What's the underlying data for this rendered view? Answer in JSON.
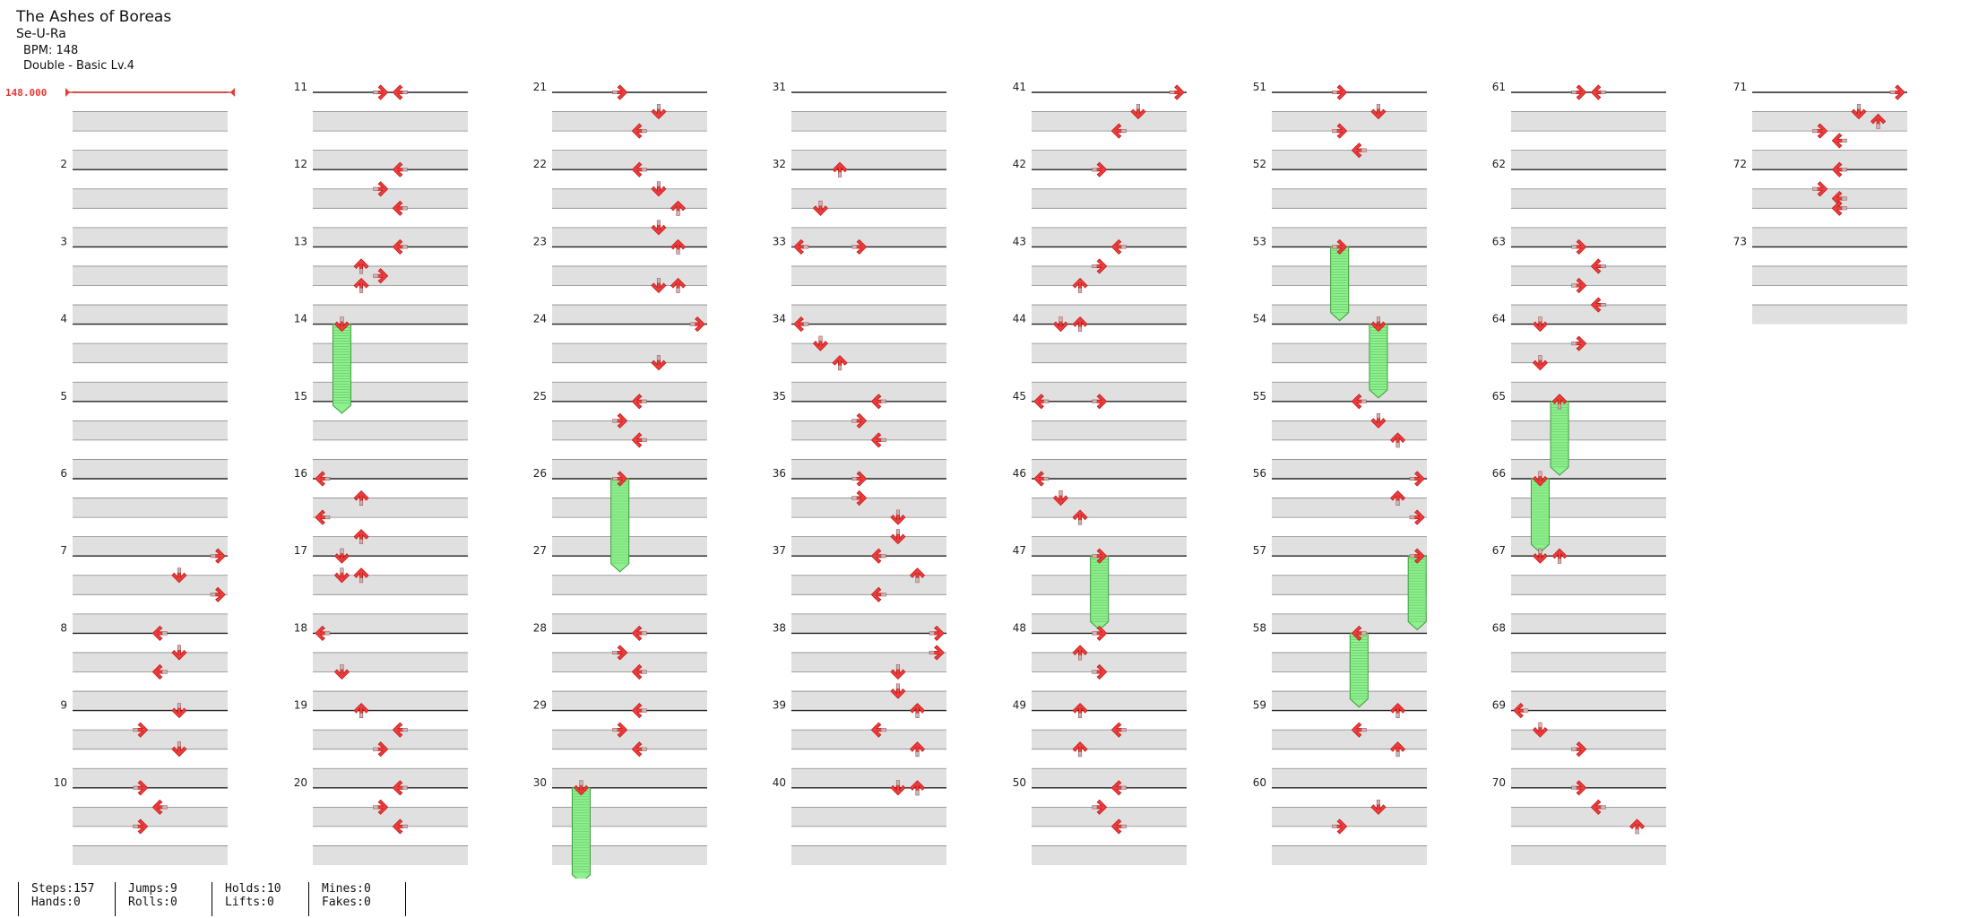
{
  "song": {
    "title": "The Ashes of Boreas",
    "artist": "Se-U-Ra",
    "bpm_label": "BPM: 148",
    "difficulty": "Double - Basic  Lv.4",
    "bpm_marker": "148.000"
  },
  "chart_data": {
    "type": "stepchart",
    "mode": "Double",
    "lanes": 8,
    "measures_total": 73,
    "arrow_color": "#f23b3b",
    "hold_color": "#8ef08e",
    "notes_by_measure": {
      "7": [
        [
          0,
          7,
          "R"
        ],
        [
          1,
          5,
          "D"
        ],
        [
          2,
          7,
          "R"
        ]
      ],
      "8": [
        [
          0,
          4,
          "L"
        ],
        [
          1,
          5,
          "D"
        ],
        [
          2,
          4,
          "L"
        ]
      ],
      "9": [
        [
          0,
          5,
          "D"
        ],
        [
          1,
          3,
          "R"
        ],
        [
          2,
          5,
          "D"
        ]
      ],
      "10": [
        [
          0,
          3,
          "R"
        ],
        [
          1,
          4,
          "L"
        ],
        [
          2,
          3,
          "R"
        ]
      ],
      "11": [
        [
          0,
          3,
          "R"
        ],
        [
          0,
          4,
          "L"
        ]
      ],
      "12": [
        [
          0,
          4,
          "L"
        ],
        [
          1,
          3,
          "R"
        ],
        [
          2,
          4,
          "L"
        ]
      ],
      "13": [
        [
          0,
          4,
          "L"
        ],
        [
          1,
          2,
          "U"
        ],
        [
          1.5,
          3,
          "R"
        ],
        [
          2,
          2,
          "U"
        ]
      ],
      "14": [
        [
          0,
          1,
          "D"
        ]
      ],
      "16": [
        [
          0,
          0,
          "L"
        ],
        [
          1,
          2,
          "U"
        ],
        [
          2,
          0,
          "L"
        ],
        [
          3,
          2,
          "U"
        ]
      ],
      "17": [
        [
          0,
          1,
          "D"
        ],
        [
          1,
          1,
          "D"
        ],
        [
          1,
          2,
          "U"
        ]
      ],
      "18": [
        [
          0,
          0,
          "L"
        ],
        [
          2,
          1,
          "D"
        ]
      ],
      "19": [
        [
          0,
          2,
          "U"
        ],
        [
          1,
          4,
          "L"
        ],
        [
          2,
          3,
          "R"
        ]
      ],
      "20": [
        [
          0,
          4,
          "L"
        ],
        [
          1,
          3,
          "R"
        ],
        [
          2,
          4,
          "L"
        ]
      ],
      "21": [
        [
          0,
          3,
          "R"
        ],
        [
          1,
          5,
          "D"
        ],
        [
          2,
          4,
          "L"
        ]
      ],
      "22": [
        [
          0,
          4,
          "L"
        ],
        [
          1,
          5,
          "D"
        ],
        [
          2,
          6,
          "U"
        ]
      ],
      "23": [
        [
          -1,
          5,
          "D"
        ],
        [
          0,
          6,
          "U"
        ],
        [
          2,
          5,
          "D"
        ],
        [
          2,
          6,
          "U"
        ]
      ],
      "24": [
        [
          0,
          7,
          "R"
        ],
        [
          2,
          5,
          "D"
        ]
      ],
      "25": [
        [
          0,
          4,
          "L"
        ],
        [
          1,
          3,
          "R"
        ],
        [
          2,
          4,
          "L"
        ]
      ],
      "26": [
        [
          0,
          3,
          "R"
        ]
      ],
      "28": [
        [
          0,
          4,
          "L"
        ],
        [
          1,
          3,
          "R"
        ],
        [
          2,
          4,
          "L"
        ]
      ],
      "29": [
        [
          0,
          4,
          "L"
        ],
        [
          1,
          3,
          "R"
        ],
        [
          2,
          4,
          "L"
        ]
      ],
      "30": [
        [
          0,
          1,
          "D"
        ]
      ],
      "32": [
        [
          0,
          2,
          "U"
        ],
        [
          2,
          1,
          "D"
        ]
      ],
      "33": [
        [
          0,
          0,
          "L"
        ],
        [
          0,
          3,
          "R"
        ]
      ],
      "34": [
        [
          0,
          0,
          "L"
        ],
        [
          1,
          1,
          "D"
        ],
        [
          2,
          2,
          "U"
        ]
      ],
      "35": [
        [
          0,
          4,
          "L"
        ],
        [
          1,
          3,
          "R"
        ],
        [
          2,
          4,
          "L"
        ]
      ],
      "36": [
        [
          0,
          3,
          "R"
        ],
        [
          1,
          3,
          "R"
        ],
        [
          2,
          5,
          "D"
        ],
        [
          3,
          5,
          "D"
        ]
      ],
      "37": [
        [
          0,
          4,
          "L"
        ],
        [
          1,
          6,
          "U"
        ],
        [
          2,
          4,
          "L"
        ]
      ],
      "38": [
        [
          0,
          7,
          "R"
        ],
        [
          1,
          7,
          "R"
        ],
        [
          2,
          5,
          "D"
        ],
        [
          3,
          5,
          "D"
        ]
      ],
      "39": [
        [
          0,
          6,
          "U"
        ],
        [
          1,
          4,
          "L"
        ],
        [
          2,
          6,
          "U"
        ]
      ],
      "40": [
        [
          0,
          5,
          "D"
        ],
        [
          0,
          6,
          "U"
        ]
      ],
      "41": [
        [
          0,
          7,
          "R"
        ],
        [
          1,
          5,
          "D"
        ],
        [
          2,
          4,
          "L"
        ]
      ],
      "42": [
        [
          0,
          3,
          "R"
        ]
      ],
      "43": [
        [
          0,
          4,
          "L"
        ],
        [
          1,
          3,
          "R"
        ],
        [
          2,
          2,
          "U"
        ]
      ],
      "44": [
        [
          0,
          1,
          "D"
        ],
        [
          0,
          2,
          "U"
        ]
      ],
      "45": [
        [
          0,
          0,
          "L"
        ],
        [
          0,
          3,
          "R"
        ]
      ],
      "46": [
        [
          0,
          0,
          "L"
        ],
        [
          1,
          1,
          "D"
        ],
        [
          2,
          2,
          "U"
        ]
      ],
      "47": [
        [
          0,
          3,
          "R"
        ]
      ],
      "48": [
        [
          0,
          3,
          "R"
        ],
        [
          1,
          2,
          "U"
        ],
        [
          2,
          3,
          "R"
        ]
      ],
      "49": [
        [
          0,
          2,
          "U"
        ],
        [
          1,
          4,
          "L"
        ],
        [
          2,
          2,
          "U"
        ]
      ],
      "50": [
        [
          0,
          4,
          "L"
        ],
        [
          1,
          3,
          "R"
        ],
        [
          2,
          4,
          "L"
        ]
      ],
      "51": [
        [
          0,
          3,
          "R"
        ],
        [
          1,
          5,
          "D"
        ],
        [
          2,
          3,
          "R"
        ],
        [
          3,
          4,
          "L"
        ]
      ],
      "53": [
        [
          0,
          3,
          "R"
        ]
      ],
      "54": [
        [
          0,
          5,
          "D"
        ]
      ],
      "55": [
        [
          0,
          4,
          "L"
        ],
        [
          1,
          5,
          "D"
        ],
        [
          2,
          6,
          "U"
        ]
      ],
      "56": [
        [
          0,
          7,
          "R"
        ],
        [
          1,
          6,
          "U"
        ],
        [
          2,
          7,
          "R"
        ]
      ],
      "57": [
        [
          0,
          7,
          "R"
        ]
      ],
      "58": [
        [
          0,
          4,
          "L"
        ]
      ],
      "59": [
        [
          0,
          6,
          "U"
        ],
        [
          1,
          4,
          "L"
        ],
        [
          2,
          6,
          "U"
        ]
      ],
      "60": [
        [
          1,
          5,
          "D"
        ],
        [
          2,
          3,
          "R"
        ]
      ],
      "61": [
        [
          0,
          3,
          "R"
        ],
        [
          0,
          4,
          "L"
        ]
      ],
      "63": [
        [
          0,
          3,
          "R"
        ],
        [
          1,
          4,
          "L"
        ],
        [
          2,
          3,
          "R"
        ],
        [
          3,
          4,
          "L"
        ]
      ],
      "64": [
        [
          0,
          1,
          "D"
        ],
        [
          1,
          3,
          "R"
        ],
        [
          2,
          1,
          "D"
        ]
      ],
      "65": [
        [
          0,
          2,
          "U"
        ]
      ],
      "66": [
        [
          0,
          1,
          "D"
        ]
      ],
      "67": [
        [
          0,
          1,
          "D"
        ],
        [
          0,
          2,
          "U"
        ]
      ],
      "69": [
        [
          0,
          0,
          "L"
        ],
        [
          1,
          1,
          "D"
        ],
        [
          2,
          3,
          "R"
        ]
      ],
      "70": [
        [
          0,
          3,
          "R"
        ],
        [
          1,
          4,
          "L"
        ],
        [
          2,
          6,
          "U"
        ]
      ],
      "71": [
        [
          0,
          7,
          "R"
        ],
        [
          1,
          5,
          "D"
        ],
        [
          1.5,
          6,
          "U"
        ],
        [
          2,
          3,
          "R"
        ],
        [
          2.5,
          4,
          "L"
        ]
      ],
      "72": [
        [
          0,
          4,
          "L"
        ],
        [
          1,
          3,
          "R"
        ],
        [
          1.5,
          4,
          "L"
        ],
        [
          2,
          4,
          "L"
        ]
      ]
    },
    "holds": [
      {
        "measure": 14,
        "lane": 1,
        "length_beats": 4.2
      },
      {
        "measure": 26,
        "lane": 3,
        "length_beats": 4.4
      },
      {
        "measure": 30,
        "lane": 1,
        "length_beats": 4.5
      },
      {
        "measure": 47,
        "lane": 3,
        "length_beats": 3.4
      },
      {
        "measure": 53,
        "lane": 3,
        "length_beats": 3.4
      },
      {
        "measure": 54,
        "lane": 5,
        "length_beats": 3.4
      },
      {
        "measure": 57,
        "lane": 7,
        "length_beats": 3.4
      },
      {
        "measure": 58,
        "lane": 4,
        "length_beats": 3.4
      },
      {
        "measure": 65,
        "lane": 2,
        "length_beats": 3.4
      },
      {
        "measure": 66,
        "lane": 1,
        "length_beats": 3.4
      }
    ]
  },
  "stats": {
    "steps": "Steps:157",
    "hands": "Hands:0",
    "jumps": "Jumps:9",
    "rolls": "Rolls:0",
    "holds": "Holds:10",
    "lifts": "Lifts:0",
    "mines": "Mines:0",
    "fakes": "Fakes:0"
  }
}
